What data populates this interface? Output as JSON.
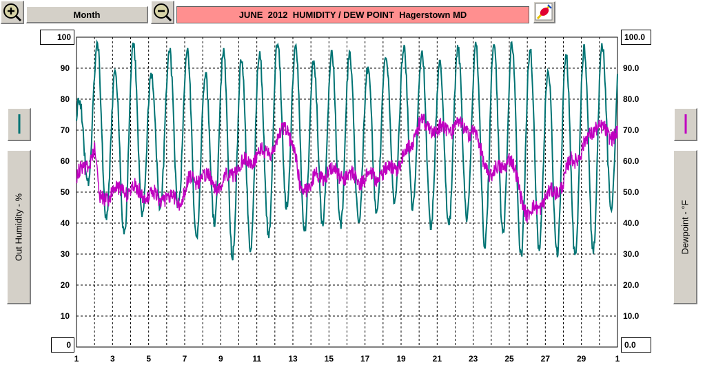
{
  "toolbar": {
    "zoom_in_icon": "zoom-in-icon",
    "zoom_out_icon": "zoom-out-icon",
    "period_label": "Month",
    "tool_icon": "color-tool-icon"
  },
  "chart_data": {
    "type": "line",
    "title": "JUNE  2012  HUMIDITY / DEW POINT  Hagerstown MD",
    "x_tick_labels": [
      "1",
      "3",
      "5",
      "7",
      "9",
      "11",
      "13",
      "15",
      "17",
      "19",
      "21",
      "23",
      "25",
      "27",
      "29",
      "1"
    ],
    "x_range_days": [
      1,
      31
    ],
    "y_left": {
      "label": "Out Humidity - %",
      "range": [
        0,
        100
      ],
      "top_label": "100",
      "bottom_label": "0",
      "tick_labels": [
        "90",
        "80",
        "70",
        "60",
        "50",
        "40",
        "30",
        "20",
        "10"
      ]
    },
    "y_right": {
      "label": "Dewpoint - °F",
      "range": [
        0,
        100
      ],
      "top_label": "100.0",
      "bottom_label": "0.0",
      "tick_labels": [
        "90.0",
        "80.0",
        "70.0",
        "60.0",
        "50.0",
        "40.0",
        "30.0",
        "20.0",
        "10.0"
      ]
    },
    "grid": true,
    "series": [
      {
        "color": "#007373",
        "axis": "left",
        "min_max_by_day": [
          [
            1,
            53,
            80
          ],
          [
            2,
            42,
            98
          ],
          [
            3,
            36,
            89
          ],
          [
            4,
            43,
            98
          ],
          [
            5,
            45,
            88
          ],
          [
            6,
            45,
            96
          ],
          [
            7,
            35,
            96
          ],
          [
            8,
            40,
            88
          ],
          [
            9,
            29,
            96
          ],
          [
            10,
            31,
            93
          ],
          [
            11,
            36,
            95
          ],
          [
            12,
            45,
            98
          ],
          [
            13,
            38,
            97
          ],
          [
            14,
            40,
            92
          ],
          [
            15,
            39,
            96
          ],
          [
            16,
            40,
            95
          ],
          [
            17,
            44,
            90
          ],
          [
            18,
            47,
            95
          ],
          [
            19,
            45,
            97
          ],
          [
            20,
            39,
            96
          ],
          [
            21,
            39,
            92
          ],
          [
            22,
            41,
            97
          ],
          [
            23,
            33,
            98
          ],
          [
            24,
            37,
            97
          ],
          [
            25,
            29,
            98
          ],
          [
            26,
            32,
            96
          ],
          [
            27,
            30,
            90
          ],
          [
            28,
            29,
            94
          ],
          [
            29,
            31,
            97
          ],
          [
            30,
            45,
            98
          ]
        ]
      },
      {
        "color": "#c000c0",
        "axis": "right",
        "level_by_day": [
          [
            1,
            55
          ],
          [
            1.5,
            58
          ],
          [
            2,
            64
          ],
          [
            2.3,
            47
          ],
          [
            3,
            50
          ],
          [
            4,
            51
          ],
          [
            5,
            49
          ],
          [
            6,
            48
          ],
          [
            6.8,
            47
          ],
          [
            7.2,
            53
          ],
          [
            8,
            55
          ],
          [
            9,
            52
          ],
          [
            9.5,
            56
          ],
          [
            10,
            58
          ],
          [
            11,
            62
          ],
          [
            12,
            64
          ],
          [
            12.6,
            72
          ],
          [
            13,
            66
          ],
          [
            13.4,
            51
          ],
          [
            14,
            53
          ],
          [
            15,
            57
          ],
          [
            16,
            55
          ],
          [
            17,
            54
          ],
          [
            18,
            56
          ],
          [
            19,
            60
          ],
          [
            19.6,
            66
          ],
          [
            20,
            72
          ],
          [
            21,
            70
          ],
          [
            22,
            71
          ],
          [
            23,
            70
          ],
          [
            23.6,
            60
          ],
          [
            24,
            55
          ],
          [
            25,
            61
          ],
          [
            25.5,
            53
          ],
          [
            26,
            42
          ],
          [
            27,
            48
          ],
          [
            27.5,
            50
          ],
          [
            28,
            53
          ],
          [
            28.4,
            60
          ],
          [
            29,
            63
          ],
          [
            29.8,
            72
          ],
          [
            30.5,
            68
          ],
          [
            31,
            70
          ]
        ]
      }
    ]
  }
}
